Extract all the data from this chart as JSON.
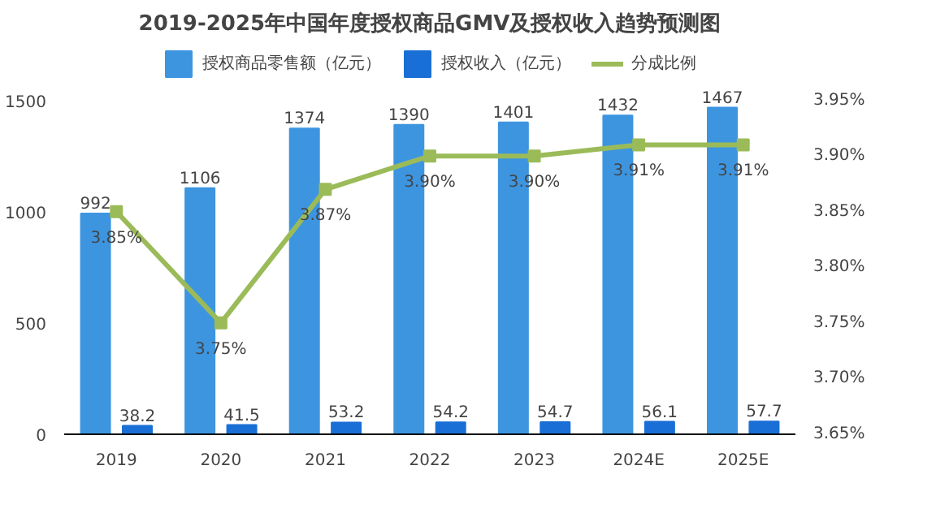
{
  "chart_data": {
    "type": "bar",
    "title": "2019-2025年中国年度授权商品GMV及授权收入趋势预测图",
    "categories": [
      "2019",
      "2020",
      "2021",
      "2022",
      "2023",
      "2024E",
      "2025E"
    ],
    "series": [
      {
        "name": "授权商品零售额（亿元）",
        "color": "#3d95e0",
        "values": [
          992,
          1106,
          1374,
          1390,
          1401,
          1432,
          1467
        ],
        "value_labels": [
          "992",
          "1106",
          "1374",
          "1390",
          "1401",
          "1432",
          "1467"
        ]
      },
      {
        "name": "授权收入（亿元）",
        "color": "#1a6fd6",
        "values": [
          38.2,
          41.5,
          53.2,
          54.2,
          54.7,
          56.1,
          57.7
        ],
        "value_labels": [
          "38.2",
          "41.5",
          "53.2",
          "54.2",
          "54.7",
          "56.1",
          "57.7"
        ]
      },
      {
        "name": "分成比例",
        "type": "line",
        "axis": "y2",
        "color": "#9bbb59",
        "marker": "square",
        "values": [
          3.85,
          3.75,
          3.87,
          3.9,
          3.9,
          3.91,
          3.91
        ],
        "value_labels": [
          "3.85%",
          "3.75%",
          "3.87%",
          "3.90%",
          "3.90%",
          "3.91%",
          "3.91%"
        ]
      }
    ],
    "ylim": [
      0,
      1750
    ],
    "yticks": [
      0,
      500,
      1000,
      1500
    ],
    "y2lim": [
      3.65,
      4.0
    ],
    "y2ticks": [
      {
        "value": 3.65,
        "label": "3.65%"
      },
      {
        "value": 3.7,
        "label": "3.70%"
      },
      {
        "value": 3.75,
        "label": "3.75%"
      },
      {
        "value": 3.8,
        "label": "3.80%"
      },
      {
        "value": 3.85,
        "label": "3.85%"
      },
      {
        "value": 3.9,
        "label": "3.90%"
      },
      {
        "value": 3.95,
        "label": "3.95%"
      }
    ],
    "legend": "top",
    "grid": false
  }
}
